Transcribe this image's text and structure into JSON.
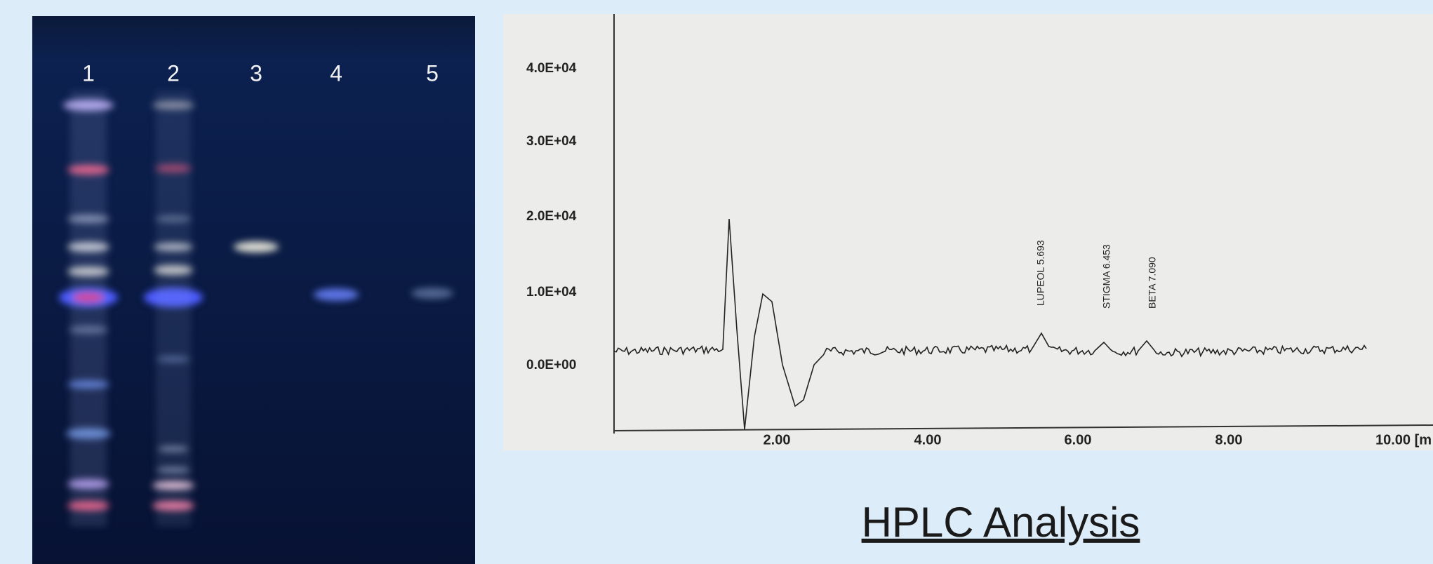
{
  "gel": {
    "lanes": [
      "1",
      "2",
      "3",
      "4",
      "5"
    ]
  },
  "chromatogram": {
    "y_labels": [
      "4.0E+04",
      "3.0E+04",
      "2.0E+04",
      "1.0E+04",
      "0.0E+00"
    ],
    "x_labels": [
      "2.00",
      "4.00",
      "6.00",
      "8.00",
      "10.00 [m"
    ],
    "peak_labels": [
      "LUPEOL 5.693",
      "STIGMA 6.453",
      "BETA 7.090"
    ]
  },
  "caption": "HPLC Analysis"
}
